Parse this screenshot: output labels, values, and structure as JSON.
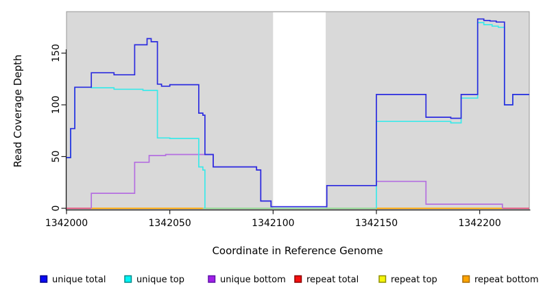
{
  "chart_data": {
    "type": "line",
    "title": "",
    "x_axis": {
      "label": "Coordinate in Reference Genome",
      "min": 1342000,
      "max": 1342224,
      "ticks": [
        1342000,
        1342050,
        1342100,
        1342150,
        1342200
      ],
      "tick_labels": [
        "1342000",
        "1342050",
        "1342100",
        "1342150",
        "1342200"
      ]
    },
    "y_axis": {
      "label": "Read Coverage Depth",
      "min": 0,
      "max": 190,
      "ticks": [
        0,
        50,
        100,
        150
      ],
      "tick_labels": [
        "0",
        "50",
        "100",
        "150"
      ]
    },
    "panel": {
      "background": "#D9D9D9",
      "border": "#979797"
    },
    "gap_region": {
      "from": 1342100,
      "to": 1342125.5,
      "color": "#FFFFFF"
    },
    "legend_position": "bottom",
    "grid": false,
    "series": [
      {
        "id": "unique-total",
        "label": "unique total",
        "color": "#2B2BDF",
        "legend_fill": "#0A0AF5",
        "legend_border": "#00008B",
        "runs": [
          {
            "points": [
              [
                1342000,
                49
              ],
              [
                1342002,
                77
              ],
              [
                1342004,
                117
              ],
              [
                1342012,
                131
              ],
              [
                1342023,
                129
              ],
              [
                1342033,
                158
              ],
              [
                1342039,
                164
              ],
              [
                1342041,
                161
              ],
              [
                1342044,
                120
              ],
              [
                1342046,
                118
              ],
              [
                1342050,
                119.5
              ],
              [
                1342064,
                92
              ],
              [
                1342066,
                90
              ],
              [
                1342067,
                52
              ],
              [
                1342071,
                40
              ],
              [
                1342092,
                37
              ],
              [
                1342094,
                7
              ],
              [
                1342099,
                1.5
              ],
              [
                1342126,
                22
              ],
              [
                1342150,
                110
              ],
              [
                1342174,
                88
              ],
              [
                1342186,
                87
              ],
              [
                1342191,
                110
              ],
              [
                1342199,
                183
              ],
              [
                1342202,
                181.5
              ],
              [
                1342205,
                181
              ],
              [
                1342208,
                180
              ],
              [
                1342212,
                100
              ],
              [
                1342216,
                110
              ]
            ],
            "end": 1342224
          }
        ]
      },
      {
        "id": "unique-top",
        "label": "unique top",
        "color": "#3BE9E9",
        "legend_fill": "#00F5F5",
        "legend_border": "#008B8B",
        "runs": [
          {
            "points": [
              [
                1342000,
                49
              ],
              [
                1342002,
                77
              ],
              [
                1342004,
                117
              ],
              [
                1342012,
                116.5
              ],
              [
                1342023,
                115
              ],
              [
                1342037,
                114
              ],
              [
                1342044,
                68
              ],
              [
                1342050,
                67.5
              ],
              [
                1342064,
                40
              ],
              [
                1342066,
                37
              ],
              [
                1342067,
                0
              ]
            ],
            "end": 1342067
          },
          {
            "points": [
              [
                1342150,
                0
              ],
              [
                1342150,
                84
              ],
              [
                1342186,
                82.5
              ],
              [
                1342191,
                106.5
              ],
              [
                1342199,
                179.5
              ],
              [
                1342202,
                177.5
              ],
              [
                1342206,
                176
              ],
              [
                1342209,
                175
              ],
              [
                1342212,
                100
              ],
              [
                1342216,
                110
              ]
            ],
            "end": 1342224
          }
        ]
      },
      {
        "id": "unique-bottom",
        "label": "unique bottom",
        "color": "#B46EE0",
        "legend_fill": "#A21FE8",
        "legend_border": "#5E12A8",
        "runs": [
          {
            "points": [
              [
                1342012,
                0
              ],
              [
                1342012,
                14.5
              ],
              [
                1342033,
                44.5
              ],
              [
                1342040,
                51
              ],
              [
                1342048,
                52
              ],
              [
                1342071,
                40
              ],
              [
                1342092,
                37
              ],
              [
                1342094,
                7
              ],
              [
                1342099,
                1.5
              ],
              [
                1342126,
                22
              ],
              [
                1342150,
                26
              ],
              [
                1342174,
                4
              ],
              [
                1342211,
                0
              ]
            ],
            "end": 1342211
          }
        ]
      },
      {
        "id": "repeat-total",
        "label": "repeat total",
        "color": "#E0323C",
        "legend_fill": "#F50F0F",
        "legend_border": "#8B0000",
        "runs": []
      },
      {
        "id": "repeat-top",
        "label": "repeat top",
        "color": "#EDED00",
        "legend_fill": "#F5F50A",
        "legend_border": "#8F8F00",
        "runs": []
      },
      {
        "id": "repeat-bottom",
        "label": "repeat bottom",
        "color": "#FFA500",
        "legend_fill": "#FFA500",
        "legend_border": "#A86A00",
        "runs": []
      }
    ],
    "baseline_segments": [
      {
        "from": 1342000,
        "to": 1342012,
        "color": "#E0507A",
        "series": "repeat total"
      },
      {
        "from": 1342012,
        "to": 1342066,
        "color": "#FFA500",
        "series": "repeat bottom"
      },
      {
        "from": 1342066,
        "to": 1342150,
        "color": "#8FD98F",
        "series": "unique top + repeat top"
      },
      {
        "from": 1342150,
        "to": 1342211,
        "color": "#FFA500",
        "series": "repeat bottom"
      },
      {
        "from": 1342211,
        "to": 1342224,
        "color": "#E0507A",
        "series": "repeat total"
      }
    ]
  }
}
